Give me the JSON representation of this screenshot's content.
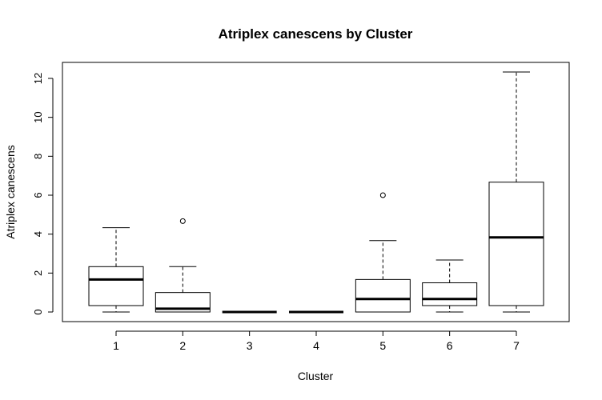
{
  "chart_data": {
    "type": "boxplot",
    "title": "Atriplex canescens by Cluster",
    "xlabel": "Cluster",
    "ylabel": "Atriplex canescens",
    "ylim": [
      -0.5,
      12.8
    ],
    "yticks": [
      0,
      2,
      4,
      6,
      8,
      10,
      12
    ],
    "categories": [
      "1",
      "2",
      "3",
      "4",
      "5",
      "6",
      "7"
    ],
    "boxes": [
      {
        "category": "1",
        "min": 0,
        "q1": 0.33,
        "median": 1.67,
        "q3": 2.33,
        "max": 4.33,
        "outliers": []
      },
      {
        "category": "2",
        "min": 0,
        "q1": 0.0,
        "median": 0.17,
        "q3": 1.0,
        "max": 2.33,
        "outliers": [
          4.67
        ]
      },
      {
        "category": "3",
        "min": 0,
        "q1": 0,
        "median": 0,
        "q3": 0,
        "max": 0,
        "outliers": []
      },
      {
        "category": "4",
        "min": 0,
        "q1": 0,
        "median": 0,
        "q3": 0,
        "max": 0,
        "outliers": []
      },
      {
        "category": "5",
        "min": 0,
        "q1": 0.0,
        "median": 0.67,
        "q3": 1.67,
        "max": 3.67,
        "outliers": [
          6.0
        ]
      },
      {
        "category": "6",
        "min": 0,
        "q1": 0.33,
        "median": 0.67,
        "q3": 1.5,
        "max": 2.67,
        "outliers": []
      },
      {
        "category": "7",
        "min": 0,
        "q1": 0.33,
        "median": 3.83,
        "q3": 6.67,
        "max": 12.33,
        "outliers": []
      }
    ],
    "grid": false,
    "legend": "none"
  }
}
